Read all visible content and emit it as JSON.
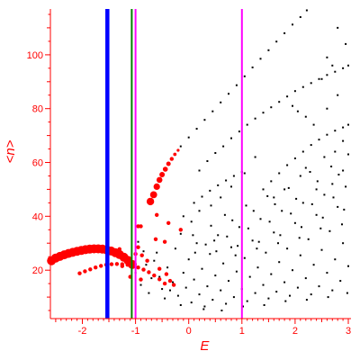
{
  "chart_data": {
    "type": "scatter",
    "title": "",
    "xlabel": "E",
    "ylabel": "<n>",
    "xlim": [
      -2.6,
      3.05
    ],
    "ylim": [
      2,
      117
    ],
    "grid": false,
    "legend": "none",
    "colors": {
      "axes": "#ff0000",
      "black_points": "#000000",
      "red_points": "#ff0000",
      "blue_line": "#0000ff",
      "green_line": "#008000",
      "magenta_line": "#ff00ff"
    },
    "x_ticks": [
      {
        "value": -2,
        "label": "-2"
      },
      {
        "value": -1,
        "label": "-1"
      },
      {
        "value": 0,
        "label": "0"
      },
      {
        "value": 1,
        "label": "1"
      },
      {
        "value": 2,
        "label": "2"
      },
      {
        "value": 3,
        "label": "3"
      }
    ],
    "y_ticks": [
      {
        "value": 20,
        "label": "20"
      },
      {
        "value": 40,
        "label": "40"
      },
      {
        "value": 60,
        "label": "60"
      },
      {
        "value": 80,
        "label": "80"
      },
      {
        "value": 100,
        "label": "100"
      }
    ],
    "vertical_lines": [
      {
        "x": -1.53,
        "color": "#0000ff",
        "weight": "thick"
      },
      {
        "x": -1.07,
        "color": "#008000",
        "weight": "thin"
      },
      {
        "x": -1.0,
        "color": "#ff00ff",
        "weight": "thin"
      },
      {
        "x": 1.0,
        "color": "#ff00ff",
        "weight": "thin"
      }
    ],
    "red_arc_main": [
      [
        -2.58,
        23.5
      ],
      [
        -2.5,
        24.5
      ],
      [
        -2.42,
        25.1
      ],
      [
        -2.34,
        25.7
      ],
      [
        -2.26,
        26.2
      ],
      [
        -2.18,
        26.6
      ],
      [
        -2.1,
        27.0
      ],
      [
        -2.02,
        27.3
      ],
      [
        -1.94,
        27.6
      ],
      [
        -1.86,
        27.8
      ],
      [
        -1.78,
        27.9
      ],
      [
        -1.7,
        27.9
      ],
      [
        -1.62,
        27.8
      ],
      [
        -1.54,
        27.5
      ],
      [
        -1.46,
        27.1
      ],
      [
        -1.38,
        26.5
      ],
      [
        -1.3,
        25.8
      ],
      [
        -1.22,
        24.8
      ],
      [
        -1.14,
        23.6
      ],
      [
        -1.06,
        22.1
      ]
    ],
    "red_arc_upper": [
      [
        -0.72,
        45.5
      ],
      [
        -0.66,
        48.0
      ],
      [
        -0.6,
        51.0
      ],
      [
        -0.55,
        53.5
      ],
      [
        -0.5,
        55.5
      ],
      [
        -0.44,
        57.5
      ],
      [
        -0.38,
        59.5
      ],
      [
        -0.32,
        61.3
      ],
      [
        -0.26,
        63.0
      ],
      [
        -0.2,
        64.5
      ]
    ],
    "red_arc_lower": [
      [
        -2.05,
        18.8
      ],
      [
        -1.95,
        19.6
      ],
      [
        -1.85,
        20.3
      ],
      [
        -1.75,
        21.0
      ],
      [
        -1.65,
        21.6
      ],
      [
        -1.55,
        22.0
      ],
      [
        -1.45,
        22.2
      ],
      [
        -1.35,
        22.3
      ],
      [
        -1.25,
        22.2
      ],
      [
        -1.15,
        22.0
      ],
      [
        -1.05,
        21.6
      ],
      [
        -0.95,
        21.0
      ],
      [
        -0.85,
        20.2
      ],
      [
        -0.75,
        19.2
      ],
      [
        -0.65,
        18.0
      ],
      [
        -0.55,
        16.6
      ],
      [
        -0.45,
        15.0
      ]
    ],
    "red_scattered": [
      [
        -0.95,
        36.3
      ],
      [
        -0.9,
        36.3
      ],
      [
        -0.6,
        40.5
      ],
      [
        -0.38,
        37.5
      ],
      [
        -0.15,
        35.0
      ],
      [
        -0.62,
        31.5
      ],
      [
        -0.45,
        30.5
      ],
      [
        -0.95,
        28.5
      ],
      [
        -1.3,
        27.8
      ],
      [
        -1.0,
        26.0
      ],
      [
        -0.88,
        25.5
      ],
      [
        -1.15,
        24.0
      ],
      [
        -0.78,
        23.5
      ],
      [
        -0.55,
        20.5
      ],
      [
        -0.42,
        18.5
      ],
      [
        -0.35,
        16.0
      ],
      [
        -0.28,
        14.5
      ],
      [
        -1.1,
        17.5
      ],
      [
        -0.9,
        16.5
      ],
      [
        -1.25,
        21.5
      ]
    ],
    "black_line_1": [
      [
        -0.15,
        66.0
      ],
      [
        0.0,
        69.3
      ],
      [
        0.15,
        72.5
      ],
      [
        0.3,
        75.8
      ],
      [
        0.45,
        79.0
      ],
      [
        0.6,
        82.3
      ],
      [
        0.75,
        85.5
      ],
      [
        0.9,
        88.7
      ],
      [
        1.05,
        92.0
      ],
      [
        1.2,
        95.3
      ],
      [
        1.35,
        98.5
      ],
      [
        1.5,
        101.7
      ],
      [
        1.65,
        104.9
      ],
      [
        1.8,
        108.0
      ],
      [
        1.95,
        111.2
      ],
      [
        2.1,
        114.0
      ],
      [
        2.22,
        116.5
      ]
    ],
    "black_line_2": [
      [
        0.2,
        57.0
      ],
      [
        0.35,
        60.5
      ],
      [
        0.5,
        63.5
      ],
      [
        0.65,
        66.0
      ],
      [
        0.8,
        69.0
      ],
      [
        0.95,
        71.5
      ],
      [
        1.1,
        74.0
      ],
      [
        1.25,
        76.3
      ],
      [
        1.4,
        78.5
      ],
      [
        1.55,
        80.5
      ],
      [
        1.7,
        82.5
      ],
      [
        1.85,
        84.5
      ],
      [
        2.0,
        86.5
      ],
      [
        2.15,
        88.0
      ],
      [
        2.3,
        89.5
      ],
      [
        2.45,
        91.0
      ],
      [
        2.6,
        92.5
      ],
      [
        2.75,
        93.7
      ],
      [
        2.9,
        95.0
      ],
      [
        3.0,
        96.0
      ]
    ],
    "black_line_3": [
      [
        1.4,
        50.0
      ],
      [
        1.55,
        53.0
      ],
      [
        1.7,
        56.0
      ],
      [
        1.85,
        59.0
      ],
      [
        2.0,
        61.5
      ],
      [
        2.15,
        64.0
      ],
      [
        2.3,
        66.5
      ],
      [
        2.45,
        68.5
      ],
      [
        2.6,
        70.3
      ],
      [
        2.75,
        71.8
      ],
      [
        2.9,
        73.0
      ],
      [
        3.0,
        74.0
      ]
    ],
    "black_line_4": [
      [
        0.1,
        45.0
      ],
      [
        0.25,
        47.3
      ],
      [
        0.4,
        49.5
      ],
      [
        0.55,
        51.5
      ],
      [
        0.7,
        53.3
      ],
      [
        0.85,
        55.0
      ],
      [
        1.0,
        56.5
      ]
    ],
    "black_extra": [
      [
        2.8,
        110.0
      ],
      [
        2.95,
        104.0
      ],
      [
        2.6,
        99.0
      ],
      [
        2.7,
        96.0
      ],
      [
        2.5,
        91.0
      ],
      [
        1.95,
        81.0
      ],
      [
        2.05,
        79.0
      ],
      [
        2.2,
        77.0
      ],
      [
        2.8,
        85.0
      ],
      [
        2.6,
        80.0
      ],
      [
        2.35,
        74.0
      ],
      [
        2.9,
        68.0
      ],
      [
        2.75,
        64.0
      ],
      [
        2.55,
        62.0
      ],
      [
        2.2,
        58.0
      ],
      [
        2.1,
        55.0
      ],
      [
        1.8,
        50.0
      ],
      [
        1.6,
        47.0
      ],
      [
        2.4,
        50.0
      ],
      [
        2.7,
        52.0
      ],
      [
        2.9,
        57.0
      ],
      [
        3.0,
        63.0
      ],
      [
        1.25,
        62.0
      ],
      [
        1.05,
        56.0
      ],
      [
        0.8,
        51.0
      ],
      [
        0.6,
        47.0
      ],
      [
        0.42,
        44.0
      ],
      [
        0.2,
        42.0
      ],
      [
        -0.1,
        40.0
      ],
      [
        0.05,
        38.0
      ]
    ],
    "black_cloud": [
      [
        -0.95,
        30.5
      ],
      [
        -0.8,
        22.0
      ],
      [
        -0.75,
        11.5
      ],
      [
        -0.7,
        17.0
      ],
      [
        -0.6,
        26.5
      ],
      [
        -0.5,
        13.0
      ],
      [
        -0.45,
        9.5
      ],
      [
        -0.4,
        21.0
      ],
      [
        -0.3,
        15.5
      ],
      [
        -0.25,
        28.0
      ],
      [
        -0.2,
        10.5
      ],
      [
        -0.1,
        19.0
      ],
      [
        -0.05,
        13.5
      ],
      [
        0.0,
        24.0
      ],
      [
        0.05,
        8.0
      ],
      [
        0.1,
        16.5
      ],
      [
        0.15,
        30.0
      ],
      [
        0.2,
        11.0
      ],
      [
        0.25,
        20.5
      ],
      [
        0.3,
        6.5
      ],
      [
        0.35,
        14.0
      ],
      [
        0.4,
        26.0
      ],
      [
        0.45,
        9.0
      ],
      [
        0.5,
        18.0
      ],
      [
        0.55,
        33.0
      ],
      [
        0.6,
        12.5
      ],
      [
        0.65,
        22.5
      ],
      [
        0.7,
        7.5
      ],
      [
        0.75,
        16.0
      ],
      [
        0.8,
        28.5
      ],
      [
        0.85,
        10.0
      ],
      [
        0.9,
        19.5
      ],
      [
        0.95,
        36.0
      ],
      [
        1.0,
        13.0
      ],
      [
        1.05,
        24.5
      ],
      [
        1.1,
        8.5
      ],
      [
        1.15,
        17.5
      ],
      [
        1.2,
        31.0
      ],
      [
        1.25,
        11.5
      ],
      [
        1.3,
        21.0
      ],
      [
        1.35,
        39.0
      ],
      [
        1.4,
        14.5
      ],
      [
        1.45,
        26.5
      ],
      [
        1.5,
        9.5
      ],
      [
        1.55,
        18.5
      ],
      [
        1.6,
        34.0
      ],
      [
        1.65,
        12.0
      ],
      [
        1.7,
        23.0
      ],
      [
        1.75,
        42.0
      ],
      [
        1.8,
        15.5
      ],
      [
        1.85,
        28.0
      ],
      [
        1.9,
        10.5
      ],
      [
        1.95,
        20.0
      ],
      [
        2.0,
        37.5
      ],
      [
        2.05,
        13.5
      ],
      [
        2.1,
        25.5
      ],
      [
        2.15,
        45.0
      ],
      [
        2.2,
        17.0
      ],
      [
        2.25,
        31.5
      ],
      [
        2.3,
        11.0
      ],
      [
        2.35,
        22.0
      ],
      [
        2.4,
        40.5
      ],
      [
        2.45,
        14.0
      ],
      [
        2.5,
        27.5
      ],
      [
        2.55,
        48.0
      ],
      [
        2.6,
        19.0
      ],
      [
        2.65,
        34.5
      ],
      [
        2.7,
        12.5
      ],
      [
        2.75,
        24.0
      ],
      [
        2.8,
        43.5
      ],
      [
        2.85,
        16.0
      ],
      [
        2.9,
        30.0
      ],
      [
        2.95,
        51.0
      ],
      [
        3.0,
        21.5
      ],
      [
        0.12,
        26.5
      ],
      [
        0.32,
        29.5
      ],
      [
        0.52,
        27.0
      ],
      [
        0.72,
        32.5
      ],
      [
        0.92,
        29.0
      ],
      [
        1.12,
        35.5
      ],
      [
        1.32,
        30.5
      ],
      [
        1.52,
        38.0
      ],
      [
        1.72,
        33.0
      ],
      [
        1.92,
        41.0
      ],
      [
        2.12,
        36.0
      ],
      [
        2.32,
        44.5
      ],
      [
        2.52,
        39.5
      ],
      [
        2.72,
        47.0
      ],
      [
        2.92,
        42.5
      ],
      [
        -0.15,
        33.5
      ],
      [
        0.42,
        36.5
      ],
      [
        0.82,
        38.5
      ],
      [
        1.22,
        42.0
      ],
      [
        1.62,
        44.5
      ],
      [
        2.02,
        46.5
      ],
      [
        2.42,
        53.0
      ],
      [
        2.82,
        55.5
      ],
      [
        -0.35,
        12.5
      ],
      [
        -0.15,
        7.0
      ],
      [
        0.28,
        5.5
      ],
      [
        0.62,
        5.0
      ],
      [
        1.02,
        6.5
      ],
      [
        1.42,
        7.0
      ],
      [
        1.82,
        8.5
      ],
      [
        2.22,
        9.0
      ],
      [
        2.62,
        10.0
      ],
      [
        2.98,
        11.5
      ],
      [
        -0.55,
        17.5
      ],
      [
        -0.65,
        23.5
      ],
      [
        -0.85,
        27.0
      ],
      [
        -0.9,
        14.5
      ],
      [
        -1.0,
        19.0
      ],
      [
        0.68,
        40.5
      ],
      [
        1.08,
        44.0
      ],
      [
        1.48,
        47.5
      ],
      [
        1.88,
        50.5
      ],
      [
        2.28,
        56.5
      ],
      [
        2.68,
        58.5
      ],
      [
        0.08,
        33.0
      ],
      [
        0.48,
        31.0
      ],
      [
        0.88,
        25.5
      ],
      [
        1.28,
        28.0
      ],
      [
        1.68,
        30.0
      ],
      [
        2.08,
        32.0
      ],
      [
        2.48,
        35.5
      ],
      [
        2.88,
        37.0
      ]
    ]
  }
}
